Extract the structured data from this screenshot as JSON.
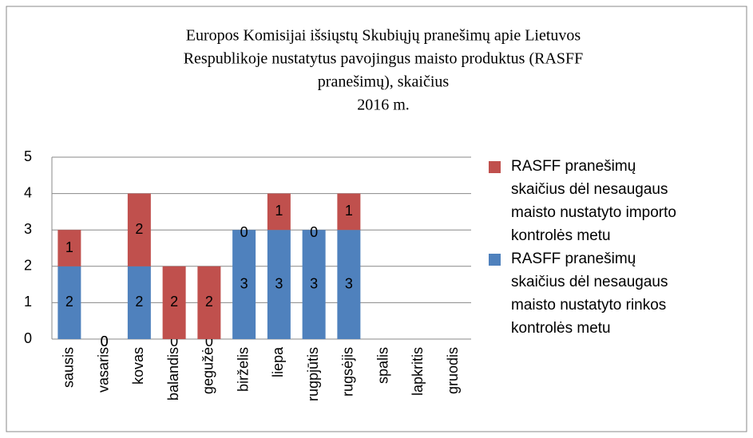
{
  "chart_data": {
    "type": "stacked_bar",
    "title": [
      "Europos Komisijai  išsiųstų Skubiųjų pranešimų apie Lietuvos",
      "Respublikoje  nustatytus pavojingus maisto produktus (RASFF",
      "pranešimų),  skaičius",
      "2016  m."
    ],
    "categories": [
      "sausis",
      "vasaris",
      "kovas",
      "balandis",
      "gegužė",
      "birželis",
      "liepa",
      "rugpjūtis",
      "rugsėjis",
      "spalis",
      "lapkritis",
      "gruodis"
    ],
    "series": [
      {
        "name": "RASFF pranešimų skaičius dėl nesaugaus maisto nustatyto rinkos kontrolės metu",
        "color": "#4f81bd",
        "values": [
          2,
          0,
          2,
          0,
          0,
          3,
          3,
          3,
          3,
          null,
          null,
          null
        ]
      },
      {
        "name": "RASFF pranešimų skaičius dėl nesaugaus maisto nustatyto importo kontrolės metu",
        "color": "#c0504d",
        "values": [
          1,
          0,
          2,
          2,
          2,
          0,
          1,
          0,
          1,
          null,
          null,
          null
        ]
      }
    ],
    "ylim": [
      0,
      5
    ],
    "yticks": [
      0,
      1,
      2,
      3,
      4,
      5
    ],
    "grid": true,
    "legend": "right"
  }
}
